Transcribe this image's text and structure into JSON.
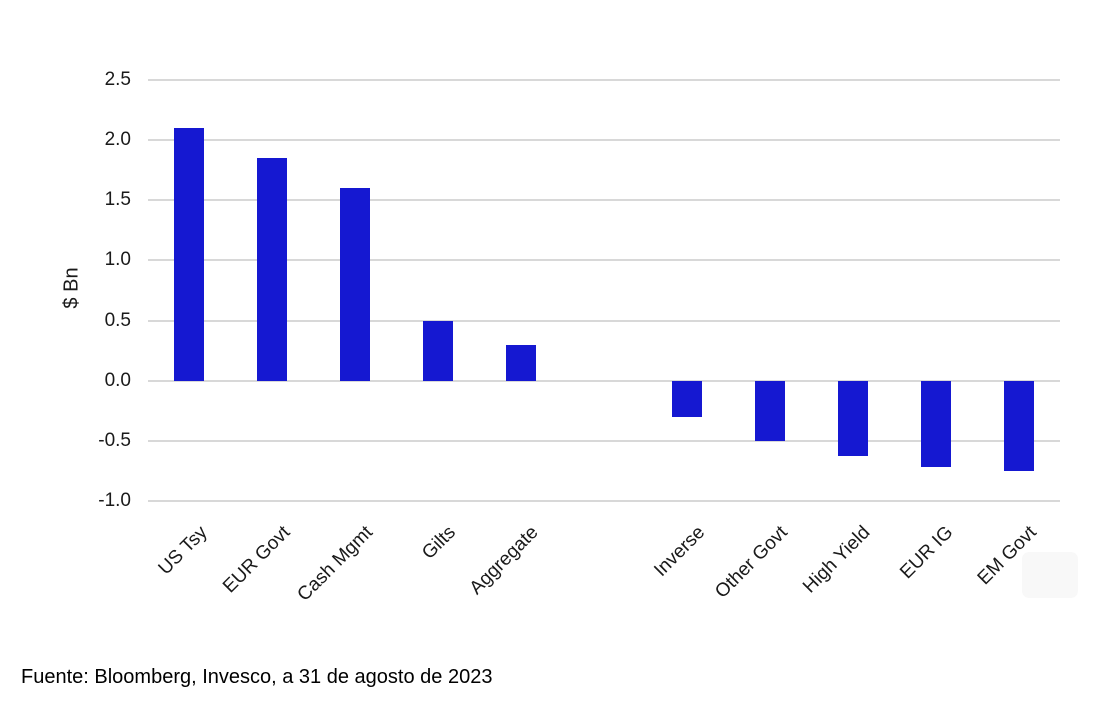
{
  "chart_data": {
    "type": "bar",
    "title": "",
    "xlabel": "",
    "ylabel": "$ Bn",
    "categories": [
      "US Tsy",
      "EUR Govt",
      "Cash Mgmt",
      "Gilts",
      "Aggregate",
      "",
      "Inverse",
      "Other Govt",
      "High Yield",
      "EUR IG",
      "EM Govt"
    ],
    "values": [
      2.1,
      1.85,
      1.6,
      0.5,
      0.3,
      null,
      -0.3,
      -0.5,
      -0.63,
      -0.72,
      -0.75
    ],
    "yticks": [
      2.5,
      2.0,
      1.5,
      1.0,
      0.5,
      0.0,
      -0.5,
      -1.0
    ],
    "ytick_labels": [
      "2.5",
      "2.0",
      "1.5",
      "1.0",
      "0.5",
      "0.0",
      "-0.5",
      "-1.0"
    ],
    "ylim": [
      -1.0,
      2.5
    ],
    "grid": true,
    "legend": false,
    "bar_color": "#1518D1",
    "grid_color": "#D8D8D8",
    "text_color": "#1A1A1A"
  },
  "footer": {
    "source_text": "Fuente: Bloomberg, Invesco, a 31 de agosto de 2023"
  }
}
